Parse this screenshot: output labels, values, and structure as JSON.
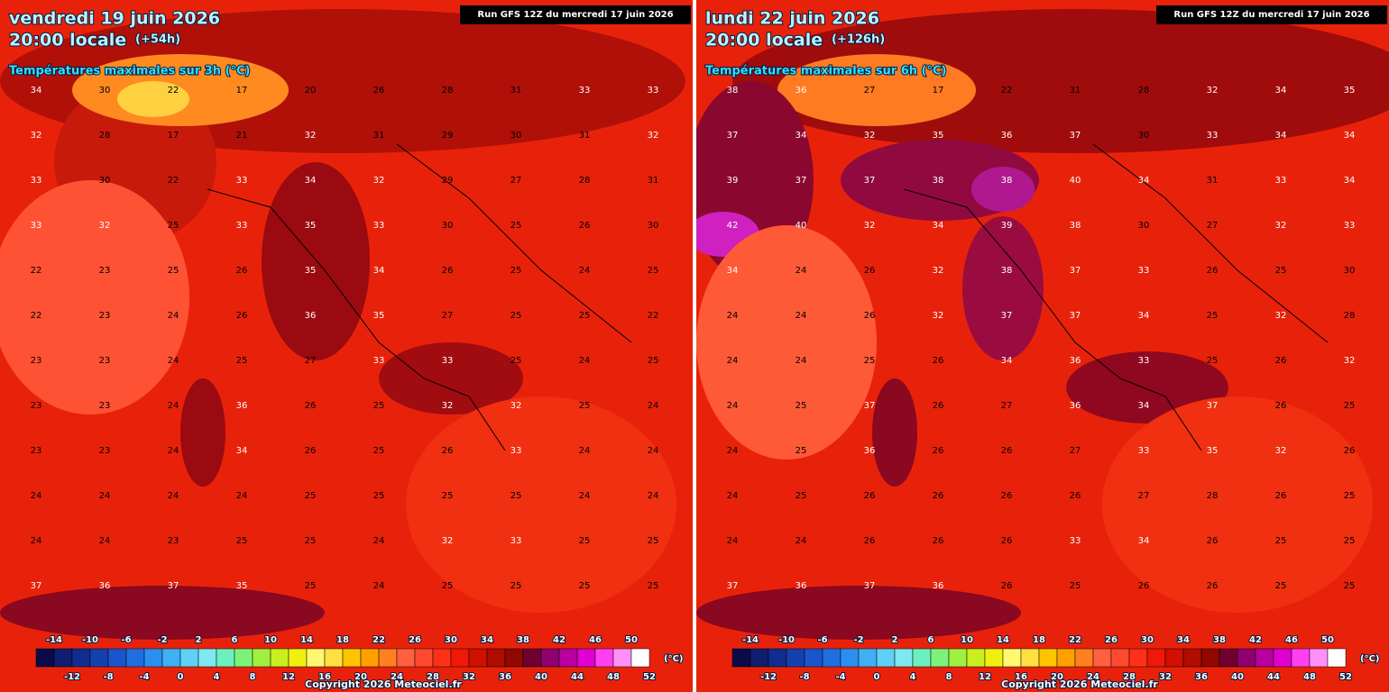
{
  "legend": {
    "colors": [
      "#0b0b4a",
      "#0f1e6e",
      "#102d8f",
      "#1540b0",
      "#1a55cc",
      "#1f6fe0",
      "#2a8ff0",
      "#3fb0f5",
      "#5fd0f8",
      "#7de8f0",
      "#6cf0c0",
      "#7cf27a",
      "#a0f040",
      "#c8f020",
      "#f0f010",
      "#fff870",
      "#ffe040",
      "#ffc400",
      "#ffa000",
      "#ff8020",
      "#ff6040",
      "#ff4a30",
      "#ff3018",
      "#f01808",
      "#d01000",
      "#b00c00",
      "#900800",
      "#700030",
      "#900070",
      "#b800a0",
      "#e000d0",
      "#ff40f0",
      "#ff90f8",
      "#ffffff"
    ],
    "start": -16,
    "step": 2,
    "top_labels": [
      -14,
      -10,
      -6,
      -2,
      2,
      6,
      10,
      14,
      18,
      22,
      26,
      30,
      34,
      38,
      42,
      46,
      50
    ],
    "bottom_labels": [
      -12,
      -8,
      -4,
      0,
      4,
      8,
      12,
      16,
      20,
      24,
      28,
      32,
      36,
      40,
      44,
      48,
      52
    ],
    "unit": "(°C)"
  },
  "panels": [
    {
      "date": "vendredi 19 juin 2026",
      "time": "20:00 locale",
      "lead": "(+54h)",
      "subtitle": "Températures maximales sur 3h (°C)",
      "run": "Run GFS 12Z du mercredi 17 juin 2026",
      "copyright": "Copyright 2026 Meteociel.fr",
      "grid": [
        [
          34,
          30,
          22,
          17,
          20,
          26,
          28,
          31,
          33,
          33
        ],
        [
          32,
          28,
          17,
          21,
          32,
          31,
          29,
          30,
          31,
          32
        ],
        [
          33,
          30,
          22,
          33,
          34,
          32,
          29,
          27,
          28,
          31
        ],
        [
          33,
          32,
          25,
          33,
          35,
          33,
          30,
          25,
          26,
          30
        ],
        [
          22,
          23,
          25,
          26,
          35,
          34,
          26,
          25,
          24,
          25
        ],
        [
          22,
          23,
          24,
          26,
          36,
          35,
          27,
          25,
          25,
          22
        ],
        [
          23,
          23,
          24,
          25,
          27,
          33,
          33,
          25,
          24,
          25
        ],
        [
          23,
          23,
          24,
          36,
          26,
          25,
          32,
          32,
          25,
          24
        ],
        [
          23,
          23,
          24,
          34,
          26,
          25,
          26,
          33,
          24,
          24
        ],
        [
          24,
          24,
          24,
          24,
          25,
          25,
          25,
          25,
          24,
          24
        ],
        [
          24,
          24,
          23,
          25,
          25,
          24,
          32,
          33,
          25,
          25
        ],
        [
          37,
          36,
          37,
          35,
          25,
          24,
          25,
          25,
          25,
          25
        ]
      ]
    },
    {
      "date": "lundi 22 juin 2026",
      "time": "20:00 locale",
      "lead": "(+126h)",
      "subtitle": "Températures maximales sur 6h (°C)",
      "run": "Run GFS 12Z du mercredi 17 juin 2026",
      "copyright": "Copyright 2026 Meteociel.fr",
      "grid": [
        [
          38,
          36,
          27,
          17,
          22,
          31,
          28,
          32,
          34,
          35
        ],
        [
          37,
          34,
          32,
          35,
          36,
          37,
          30,
          33,
          34,
          34
        ],
        [
          39,
          37,
          37,
          38,
          38,
          40,
          34,
          31,
          33,
          34
        ],
        [
          42,
          40,
          32,
          34,
          39,
          38,
          30,
          27,
          32,
          33
        ],
        [
          34,
          24,
          26,
          32,
          38,
          37,
          33,
          26,
          25,
          30
        ],
        [
          24,
          24,
          26,
          32,
          37,
          37,
          34,
          25,
          32,
          28
        ],
        [
          24,
          24,
          25,
          26,
          34,
          36,
          33,
          25,
          26,
          32
        ],
        [
          24,
          25,
          37,
          26,
          27,
          36,
          34,
          37,
          26,
          25
        ],
        [
          24,
          25,
          36,
          26,
          26,
          27,
          33,
          35,
          32,
          26
        ],
        [
          24,
          25,
          26,
          26,
          26,
          26,
          27,
          28,
          26,
          25
        ],
        [
          24,
          24,
          26,
          26,
          26,
          33,
          34,
          26,
          25,
          25
        ],
        [
          37,
          36,
          37,
          36,
          26,
          25,
          26,
          26,
          25,
          25
        ]
      ]
    }
  ]
}
